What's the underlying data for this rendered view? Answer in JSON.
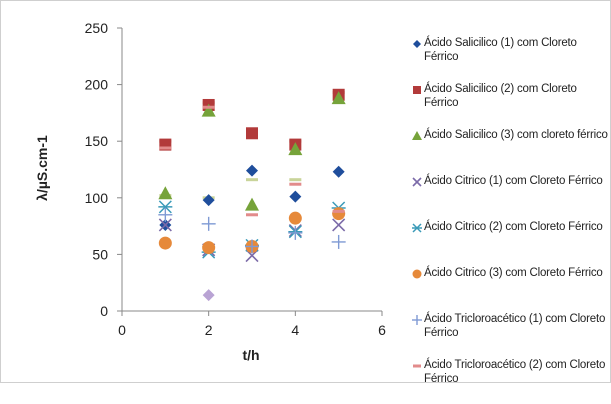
{
  "chart_data": {
    "type": "scatter",
    "xlabel": "t/h",
    "ylabel": "λ/µS.cm-1",
    "xlim": [
      0,
      6
    ],
    "ylim": [
      0,
      250
    ],
    "xticks": [
      "0",
      "2",
      "4",
      "6"
    ],
    "yticks": [
      "0",
      "50",
      "100",
      "150",
      "200",
      "250"
    ],
    "legend_position": "right",
    "grid": false,
    "series": [
      {
        "name": "Ácido Salicilico (1) com Cloreto Férrico",
        "marker": "diamond",
        "color": "#1f4e9c",
        "points": [
          [
            1,
            76
          ],
          [
            2,
            98
          ],
          [
            3,
            124
          ],
          [
            4,
            101
          ],
          [
            5,
            123
          ]
        ]
      },
      {
        "name": "Ácido Salicilico (2) com Cloreto Férrico",
        "marker": "square",
        "color": "#b23a3a",
        "points": [
          [
            1,
            147
          ],
          [
            2,
            182
          ],
          [
            3,
            157
          ],
          [
            4,
            147
          ],
          [
            5,
            191
          ]
        ]
      },
      {
        "name": "Ácido Salicilico (3) com cloreto férrico",
        "marker": "triangle",
        "color": "#76a33a",
        "points": [
          [
            1,
            104
          ],
          [
            2,
            177
          ],
          [
            3,
            94
          ],
          [
            4,
            143
          ],
          [
            5,
            188
          ]
        ]
      },
      {
        "name": "Ácido Citrico (1) com Cloreto Férrico",
        "marker": "x",
        "color": "#7b6aa8",
        "points": [
          [
            1,
            76
          ],
          [
            2,
            54
          ],
          [
            3,
            49
          ],
          [
            4,
            71
          ],
          [
            5,
            76
          ]
        ]
      },
      {
        "name": "Ácido Citrico (2) com Cloreto Férrico",
        "marker": "asterisk",
        "color": "#3a9ab8",
        "points": [
          [
            1,
            92
          ],
          [
            2,
            52
          ],
          [
            3,
            58
          ],
          [
            4,
            70
          ],
          [
            5,
            91
          ]
        ]
      },
      {
        "name": "Ácido Citrico (3) com Cloreto Férrico",
        "marker": "circle",
        "color": "#e6893a",
        "points": [
          [
            1,
            60
          ],
          [
            2,
            56
          ],
          [
            3,
            57
          ],
          [
            4,
            82
          ],
          [
            5,
            86
          ]
        ]
      },
      {
        "name": "Ácido Tricloroacético (1) com Cloreto Férrico",
        "marker": "plus",
        "color": "#7f9ad4",
        "points": [
          [
            1,
            85
          ],
          [
            2,
            77
          ],
          [
            3,
            57
          ],
          [
            4,
            69
          ],
          [
            5,
            61
          ]
        ]
      },
      {
        "name": "Ácido Tricloroacético (2) com Cloreto Férrico",
        "marker": "dash",
        "color": "#e28b8b",
        "points": [
          [
            1,
            144
          ],
          [
            2,
            180
          ],
          [
            3,
            85
          ],
          [
            4,
            112
          ],
          [
            5,
            88
          ]
        ]
      }
    ],
    "extra_series": [
      {
        "marker": "diamond",
        "color": "#b9a3d4",
        "points": [
          [
            2,
            14
          ]
        ]
      },
      {
        "marker": "dash",
        "color": "#c9d49a",
        "points": [
          [
            1,
            102
          ],
          [
            2,
            100
          ],
          [
            3,
            116
          ],
          [
            4,
            116
          ]
        ]
      },
      {
        "marker": "dash",
        "color": "#d4a090",
        "points": [
          [
            1,
            150
          ],
          [
            2,
            184
          ],
          [
            3,
            160
          ],
          [
            4,
            150
          ],
          [
            5,
            193
          ]
        ]
      }
    ],
    "colors": {
      "axis": "#888888",
      "text": "#222222",
      "frame": "#cfcfcf"
    }
  }
}
